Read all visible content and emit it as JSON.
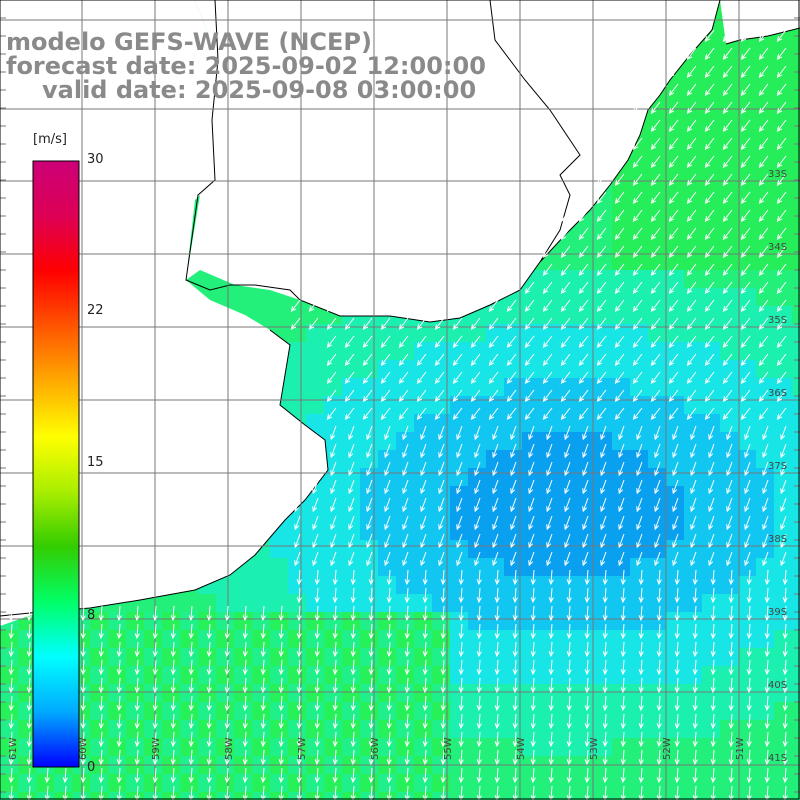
{
  "title": {
    "line1": "modelo GEFS-WAVE (NCEP)",
    "line2": "forecast date: 2025-09-02 12:00:00",
    "line3": "valid date: 2025-09-08 03:00:00"
  },
  "colorbar": {
    "unit": "[m/s]",
    "ticks": [
      "30",
      "22",
      "15",
      "8",
      "0"
    ],
    "range": [
      0,
      30
    ],
    "gradient": [
      "#0000ff",
      "#00aaff",
      "#00ffff",
      "#00ff66",
      "#33cc00",
      "#aaee00",
      "#ffff00",
      "#ffaa00",
      "#ff5500",
      "#ff0000",
      "#dd0055",
      "#cc0077"
    ]
  },
  "map": {
    "lat_labels": [
      "33S",
      "34S",
      "35S",
      "36S",
      "37S",
      "38S",
      "39S",
      "40S",
      "41S"
    ],
    "lon_labels": [
      "61W",
      "60W",
      "59W",
      "58W",
      "57W",
      "56W",
      "55W",
      "54W",
      "53W",
      "52W",
      "51W"
    ],
    "colors": {
      "coast": "#000000",
      "grid": "#777777",
      "land": "#ffffff",
      "arrow": "#ffffff"
    },
    "field_description_hidden": ""
  }
}
